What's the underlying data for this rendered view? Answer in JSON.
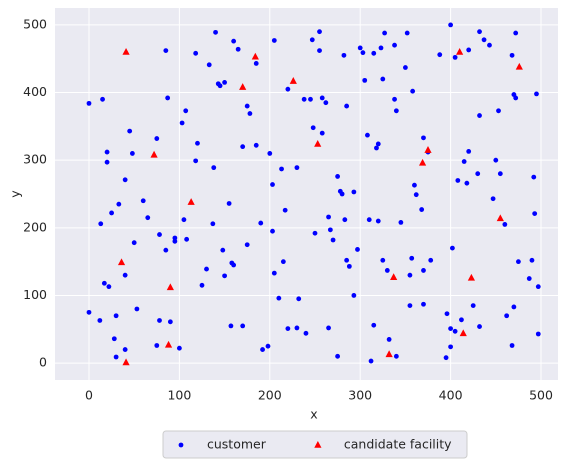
{
  "chart_data": {
    "type": "scatter",
    "xlabel": "x",
    "ylabel": "y",
    "xlim": [
      -37.6,
      518.8
    ],
    "ylim": [
      -25,
      525
    ],
    "xticks": [
      0,
      100,
      200,
      300,
      400,
      500
    ],
    "yticks": [
      0,
      100,
      200,
      300,
      400,
      500
    ],
    "grid": true,
    "legend": "below",
    "series": [
      {
        "name": "customer",
        "color": "#0000ff",
        "marker": "circle",
        "x": [
          0,
          15,
          20,
          20,
          13,
          25,
          33,
          40,
          45,
          48,
          50,
          60,
          65,
          78,
          75,
          85,
          87,
          90,
          85,
          95,
          95,
          103,
          107,
          105,
          108,
          118,
          118,
          120,
          133,
          137,
          138,
          140,
          143,
          145,
          150,
          148,
          150,
          155,
          158,
          160,
          157,
          160,
          165,
          170,
          175,
          178,
          185,
          185,
          190,
          192,
          198,
          200,
          203,
          203,
          205,
          210,
          205,
          213,
          215,
          217,
          220,
          220,
          230,
          232,
          230,
          238,
          240,
          245,
          247,
          248,
          255,
          255,
          258,
          258,
          262,
          265,
          265,
          267,
          270,
          275,
          275,
          278,
          280,
          282,
          283,
          285,
          285,
          288,
          293,
          293,
          297,
          300,
          303,
          305,
          308,
          310,
          312,
          315,
          315,
          318,
          320,
          320,
          323,
          325,
          327,
          325,
          330,
          332,
          338,
          338,
          340,
          340,
          345,
          350,
          352,
          355,
          355,
          357,
          358,
          360,
          362,
          368,
          370,
          370,
          370,
          375,
          378,
          388,
          395,
          396,
          400,
          400,
          400,
          402,
          405,
          405,
          408,
          412,
          415,
          418,
          420,
          420,
          425,
          430,
          432,
          432,
          432,
          437,
          443,
          447,
          450,
          453,
          455,
          460,
          462,
          468,
          468,
          470,
          470,
          472,
          472,
          475,
          487,
          490,
          492,
          493,
          495,
          497,
          497,
          28,
          30,
          40,
          30,
          40,
          53,
          75,
          12,
          0,
          17,
          22,
          78,
          100,
          125,
          130,
          170,
          175,
          250
        ],
        "values": [
          384,
          390,
          312,
          297,
          206,
          222,
          235,
          271,
          343,
          310,
          178,
          240,
          215,
          190,
          332,
          462,
          392,
          61,
          167,
          185,
          180,
          355,
          373,
          212,
          183,
          299,
          458,
          325,
          441,
          206,
          289,
          489,
          413,
          410,
          415,
          167,
          129,
          236,
          148,
          145,
          55,
          476,
          464,
          320,
          380,
          369,
          322,
          443,
          207,
          20,
          25,
          310,
          264,
          195,
          133,
          96,
          477,
          287,
          150,
          226,
          405,
          51,
          52,
          95,
          289,
          390,
          44,
          390,
          478,
          348,
          490,
          462,
          392,
          340,
          385,
          52,
          216,
          197,
          182,
          10,
          276,
          254,
          250,
          455,
          212,
          380,
          152,
          143,
          253,
          100,
          168,
          466,
          459,
          418,
          337,
          212,
          3,
          56,
          458,
          318,
          210,
          324,
          466,
          420,
          488,
          152,
          137,
          35,
          470,
          390,
          373,
          10,
          208,
          437,
          488,
          130,
          85,
          155,
          402,
          263,
          249,
          227,
          137,
          333,
          87,
          312,
          152,
          456,
          8,
          73,
          500,
          24,
          51,
          170,
          452,
          47,
          270,
          64,
          298,
          266,
          313,
          463,
          85,
          280,
          366,
          490,
          54,
          478,
          470,
          243,
          300,
          373,
          280,
          205,
          70,
          455,
          26,
          83,
          397,
          488,
          392,
          150,
          125,
          152,
          275,
          221,
          398,
          113,
          43,
          36,
          9,
          20,
          70,
          130,
          80,
          26,
          63,
          75,
          118,
          113,
          63,
          22,
          115,
          139,
          55,
          175,
          192
        ]
      },
      {
        "name": "candidate facility",
        "color": "#ff0000",
        "marker": "triangle",
        "x": [
          41,
          170,
          184,
          226,
          253,
          72,
          113,
          36,
          90,
          88,
          41,
          410,
          476,
          375,
          369,
          455,
          423,
          337,
          332,
          414
        ],
        "values": [
          460,
          408,
          453,
          417,
          324,
          308,
          238,
          149,
          112,
          27,
          1,
          460,
          438,
          315,
          296,
          214,
          126,
          127,
          13,
          44
        ]
      }
    ]
  }
}
